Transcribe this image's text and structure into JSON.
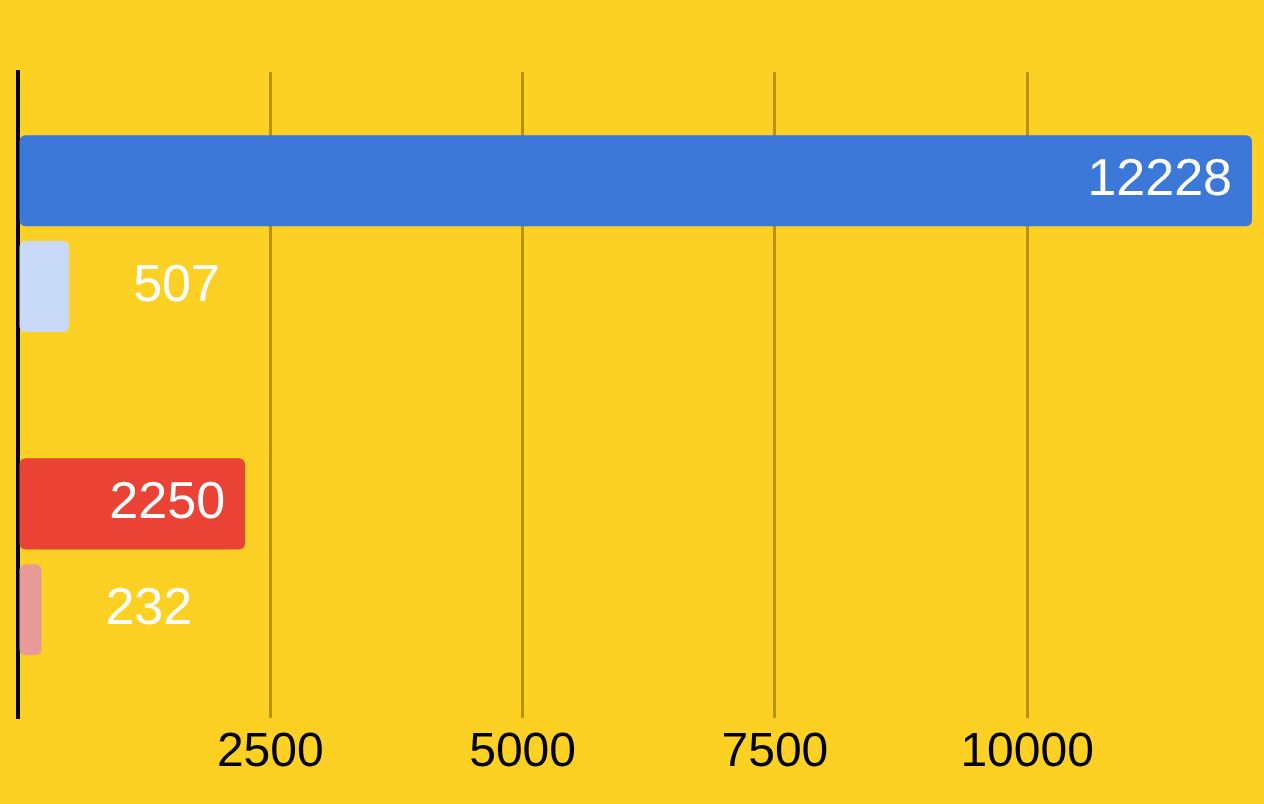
{
  "chart_data": {
    "type": "bar",
    "orientation": "horizontal",
    "categories": [
      null,
      null
    ],
    "series": [
      {
        "colors": [
          "#3c78d8",
          "#ea4335"
        ],
        "values": [
          12228,
          2250
        ]
      },
      {
        "colors": [
          "#c9daf8",
          "#ea9999"
        ],
        "values": [
          507,
          232
        ]
      }
    ],
    "xlim": [
      0,
      12228
    ],
    "xticks": [
      {
        "value": 0,
        "label": null
      },
      2500,
      5000,
      7500,
      10000
    ],
    "grid": "x",
    "legend": false,
    "data_labels": true,
    "tick_labels": "x"
  }
}
